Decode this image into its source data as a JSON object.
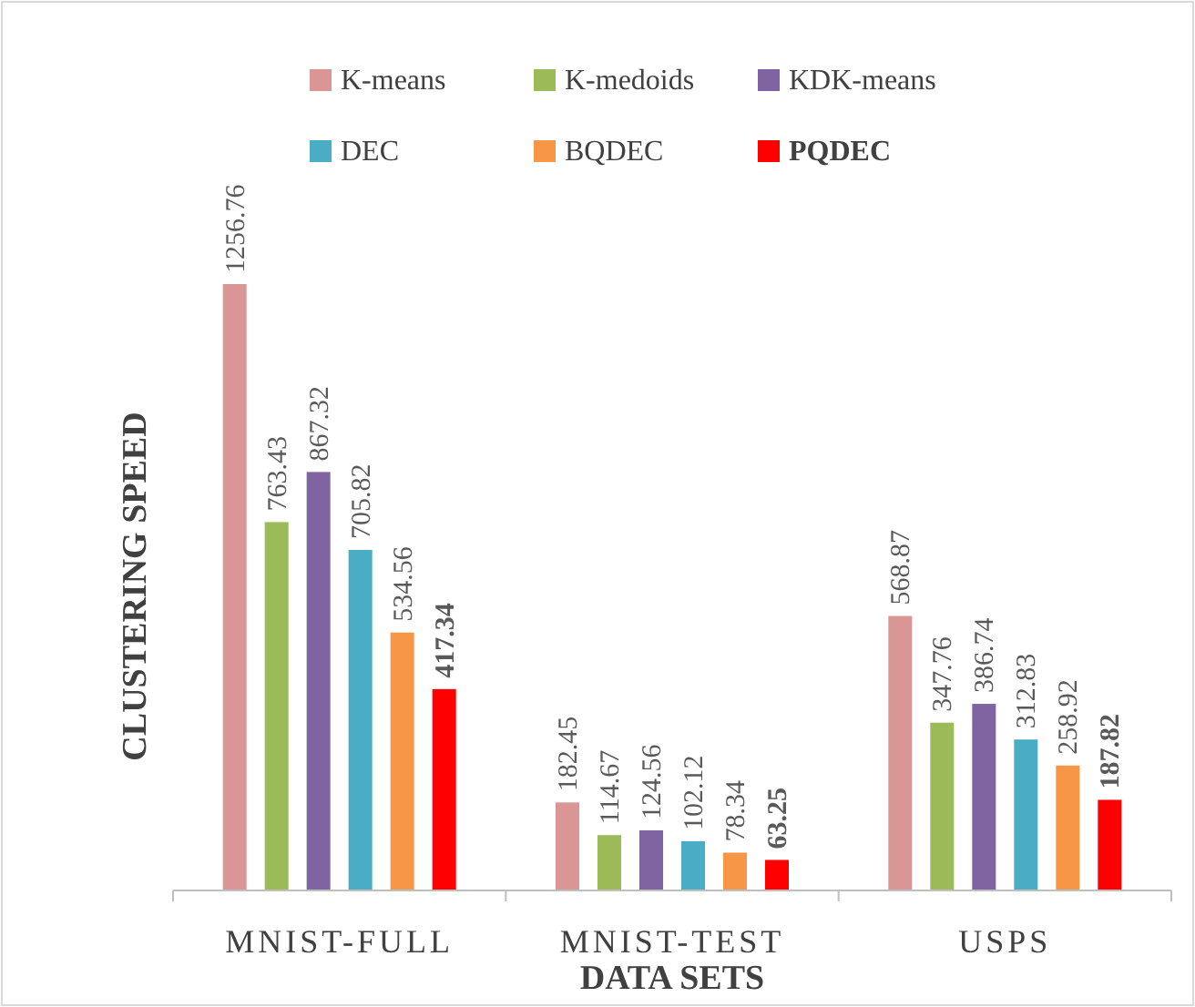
{
  "chart_data": {
    "type": "bar",
    "xlabel": "DATA SETS",
    "ylabel": "CLUSTERING SPEED",
    "categories": [
      "MNIST-FULL",
      "MNIST-TEST",
      "USPS"
    ],
    "series": [
      {
        "name": "K-means",
        "color": "#d99694",
        "values": [
          1256.76,
          182.45,
          568.87
        ]
      },
      {
        "name": "K-medoids",
        "color": "#9bbb59",
        "values": [
          763.43,
          114.67,
          347.76
        ]
      },
      {
        "name": "KDK-means",
        "color": "#8064a2",
        "values": [
          867.32,
          124.56,
          386.74
        ]
      },
      {
        "name": "DEC",
        "color": "#4bacc6",
        "values": [
          705.82,
          102.12,
          312.83
        ]
      },
      {
        "name": "BQDEC",
        "color": "#f79646",
        "values": [
          534.56,
          78.34,
          258.92
        ]
      },
      {
        "name": "PQDEC",
        "color": "#ff0000",
        "values": [
          417.34,
          63.25,
          187.82
        ]
      }
    ],
    "data_labels": true,
    "legend": "top",
    "grid": false
  }
}
